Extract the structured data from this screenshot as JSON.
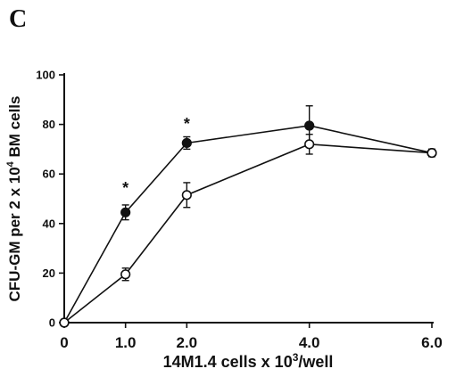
{
  "panel_label": "C",
  "chart_data": {
    "type": "line",
    "x": [
      0,
      1.0,
      2.0,
      4.0,
      6.0
    ],
    "x_tick_labels": [
      "0",
      "1.0",
      "2.0",
      "4.0",
      "6.0"
    ],
    "y_ticks": [
      0,
      20,
      40,
      60,
      80,
      100
    ],
    "ylim": [
      0,
      100
    ],
    "xlim": [
      0,
      6.0
    ],
    "xlabel": {
      "prefix": "14M1.4 cells x 10",
      "sup": "3",
      "suffix": "/well"
    },
    "ylabel": {
      "prefix": "CFU-GM per 2 x 10",
      "sup": "4",
      "suffix": " BM cells"
    },
    "series": [
      {
        "marker": "filled-circle",
        "values": [
          0,
          44.5,
          72.5,
          79.5,
          68.5
        ],
        "errors": [
          0,
          3,
          2.5,
          8,
          1.5
        ]
      },
      {
        "marker": "open-circle",
        "values": [
          0,
          19.5,
          51.5,
          72,
          68.5
        ],
        "errors": [
          0,
          2.5,
          5,
          4,
          1.5
        ]
      }
    ],
    "annotations": [
      {
        "text": "*",
        "x": 1.0,
        "y": 55
      },
      {
        "text": "*",
        "x": 2.0,
        "y": 81
      }
    ],
    "grid": false,
    "legend": "none"
  }
}
